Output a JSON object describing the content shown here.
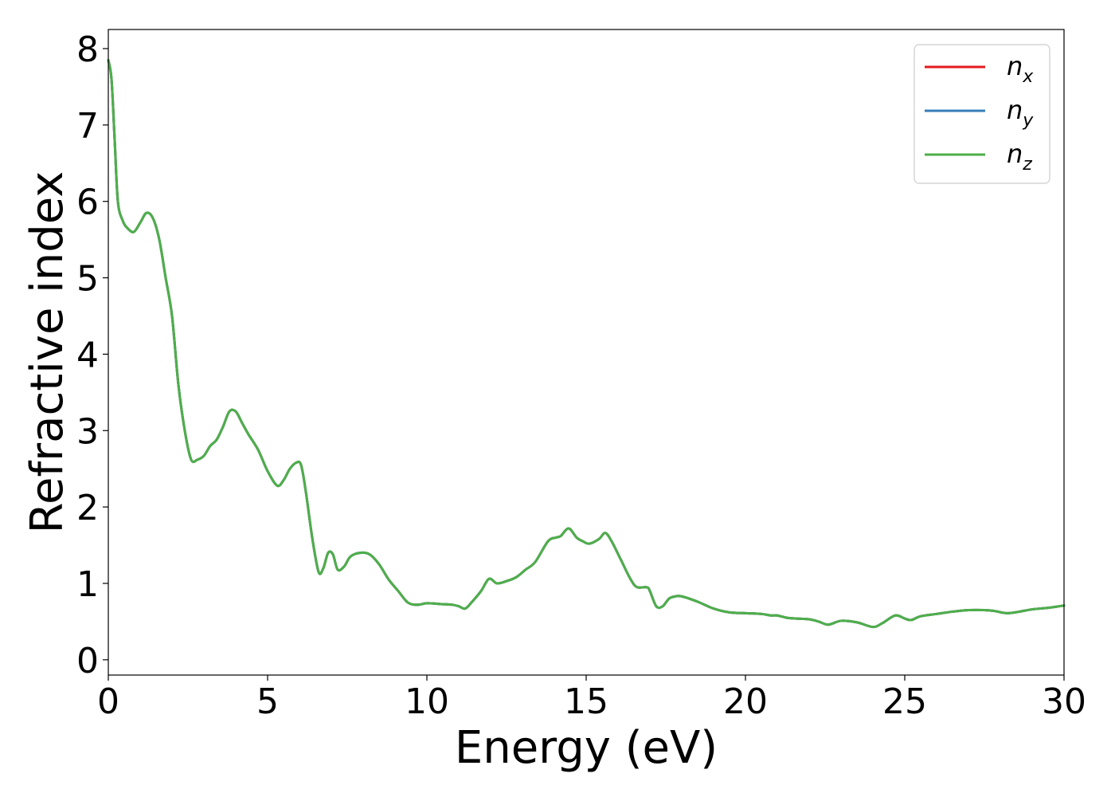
{
  "chart_data": {
    "type": "line",
    "xlabel": "Energy (eV)",
    "ylabel": "Refractive index",
    "xlim": [
      0,
      30
    ],
    "ylim": [
      -0.2,
      8.25
    ],
    "x_ticks": [
      0,
      5,
      10,
      15,
      20,
      25,
      30
    ],
    "x_tick_labels": [
      "0",
      "5",
      "10",
      "15",
      "20",
      "25",
      "30"
    ],
    "y_ticks": [
      0,
      1,
      2,
      3,
      4,
      5,
      6,
      7,
      8
    ],
    "y_tick_labels": [
      "0",
      "1",
      "2",
      "3",
      "4",
      "5",
      "6",
      "7",
      "8"
    ],
    "grid": false,
    "legend_position": "top-right",
    "series": [
      {
        "name": "n",
        "subscript": "x",
        "color": "#e41a1c"
      },
      {
        "name": "n",
        "subscript": "y",
        "color": "#377eb8"
      },
      {
        "name": "n",
        "subscript": "z",
        "color": "#4daf4a"
      }
    ],
    "x": [
      0,
      0.1,
      0.2,
      0.3,
      0.45,
      0.6,
      0.8,
      1.0,
      1.2,
      1.4,
      1.6,
      1.8,
      2.0,
      2.2,
      2.4,
      2.6,
      2.8,
      3.0,
      3.2,
      3.4,
      3.6,
      3.8,
      4.0,
      4.2,
      4.4,
      4.7,
      5.0,
      5.3,
      5.5,
      5.7,
      5.9,
      6.05,
      6.2,
      6.4,
      6.6,
      6.75,
      6.9,
      7.05,
      7.2,
      7.4,
      7.6,
      7.9,
      8.2,
      8.5,
      8.8,
      9.1,
      9.4,
      9.7,
      10.0,
      10.4,
      10.8,
      11.0,
      11.2,
      11.4,
      11.7,
      11.95,
      12.2,
      12.5,
      12.8,
      13.1,
      13.4,
      13.8,
      14.05,
      14.2,
      14.45,
      14.7,
      14.9,
      15.1,
      15.4,
      15.6,
      15.8,
      16.1,
      16.4,
      16.6,
      16.9,
      17.0,
      17.2,
      17.4,
      17.6,
      17.8,
      18.0,
      18.5,
      19.0,
      19.5,
      20.0,
      20.5,
      20.8,
      21.0,
      21.3,
      21.6,
      22.0,
      22.3,
      22.6,
      23.0,
      23.5,
      24.0,
      24.3,
      24.7,
      25.0,
      25.2,
      25.5,
      26.0,
      26.5,
      27.0,
      27.5,
      27.8,
      28.2,
      28.6,
      29.0,
      29.5,
      30.0
    ],
    "y": [
      7.85,
      7.6,
      6.8,
      6.0,
      5.75,
      5.65,
      5.6,
      5.72,
      5.85,
      5.78,
      5.5,
      5.0,
      4.5,
      3.6,
      3.0,
      2.62,
      2.62,
      2.67,
      2.8,
      2.88,
      3.05,
      3.25,
      3.25,
      3.1,
      2.95,
      2.75,
      2.47,
      2.28,
      2.35,
      2.5,
      2.58,
      2.55,
      2.2,
      1.6,
      1.15,
      1.2,
      1.4,
      1.38,
      1.18,
      1.22,
      1.35,
      1.4,
      1.38,
      1.25,
      1.05,
      0.9,
      0.75,
      0.72,
      0.74,
      0.73,
      0.72,
      0.7,
      0.67,
      0.75,
      0.9,
      1.06,
      1.0,
      1.03,
      1.08,
      1.18,
      1.28,
      1.55,
      1.6,
      1.62,
      1.72,
      1.6,
      1.55,
      1.52,
      1.58,
      1.66,
      1.55,
      1.3,
      1.05,
      0.95,
      0.95,
      0.9,
      0.7,
      0.7,
      0.8,
      0.83,
      0.83,
      0.76,
      0.67,
      0.62,
      0.61,
      0.6,
      0.58,
      0.58,
      0.55,
      0.54,
      0.53,
      0.5,
      0.46,
      0.51,
      0.49,
      0.43,
      0.48,
      0.58,
      0.54,
      0.52,
      0.57,
      0.6,
      0.63,
      0.65,
      0.65,
      0.64,
      0.61,
      0.63,
      0.66,
      0.68,
      0.71
    ]
  }
}
